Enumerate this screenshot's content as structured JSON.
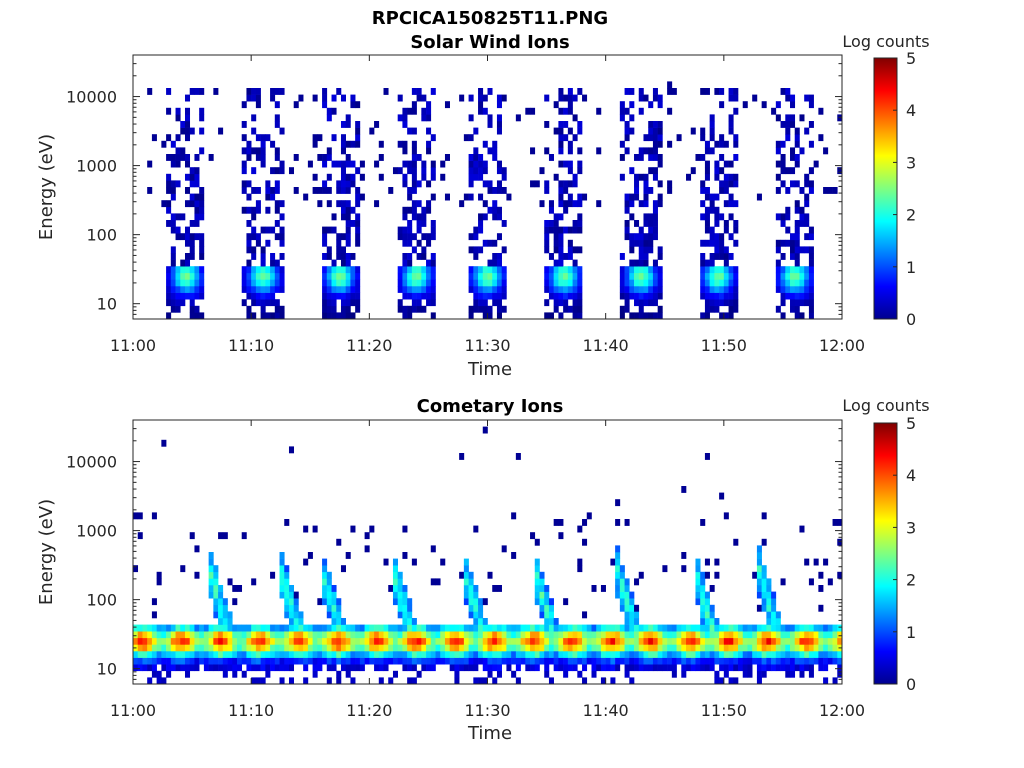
{
  "figure_title": "RPCICA150825T11.PNG",
  "chart_data": [
    {
      "type": "heatmap",
      "title": "Solar Wind Ions",
      "xlabel": "Time",
      "ylabel": "Energy (eV)",
      "x_ticks": [
        "11:00",
        "11:10",
        "11:20",
        "11:30",
        "11:40",
        "11:50",
        "12:00"
      ],
      "y_ticks": [
        "10",
        "100",
        "1000",
        "10000"
      ],
      "y_scale": "log",
      "ylim_ev": [
        6,
        40000
      ],
      "xlim_min": [
        0,
        60
      ],
      "colorbar": {
        "label": "Log counts",
        "ticks": [
          "0",
          "1",
          "2",
          "3",
          "4",
          "5"
        ],
        "range": [
          0,
          5
        ],
        "colormap": "jet"
      },
      "pattern": {
        "burst_centers_min": [
          4.5,
          11,
          17.5,
          24,
          30,
          36.5,
          43,
          49.5,
          56
        ],
        "burst_width_min": 3,
        "peak_energy_ev": 25,
        "peak_log_counts": 2.3,
        "sparse_high_energy": true
      }
    },
    {
      "type": "heatmap",
      "title": "Cometary Ions",
      "xlabel": "Time",
      "ylabel": "Energy (eV)",
      "x_ticks": [
        "11:00",
        "11:10",
        "11:20",
        "11:30",
        "11:40",
        "11:50",
        "12:00"
      ],
      "y_ticks": [
        "10",
        "100",
        "1000",
        "10000"
      ],
      "y_scale": "log",
      "ylim_ev": [
        6,
        40000
      ],
      "xlim_min": [
        0,
        60
      ],
      "colorbar": {
        "label": "Log counts",
        "ticks": [
          "0",
          "1",
          "2",
          "3",
          "4",
          "5"
        ],
        "range": [
          0,
          5
        ],
        "colormap": "jet"
      },
      "pattern": {
        "dispersion_starts_min": [
          6.5,
          12.5,
          16,
          22,
          28,
          34,
          41,
          47.5,
          53
        ],
        "band_center_ev": 25,
        "band_peak_log_counts": 4.0,
        "sparse_high_energy": true
      }
    }
  ]
}
